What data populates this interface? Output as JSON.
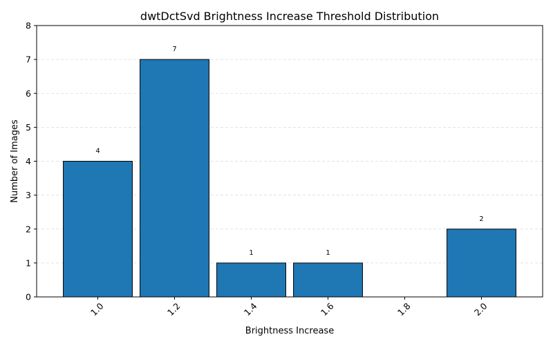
{
  "chart_data": {
    "type": "bar",
    "title": "dwtDctSvd Brightness Increase Threshold Distribution",
    "xlabel": "Brightness Increase",
    "ylabel": "Number of Images",
    "categories": [
      "1.0",
      "1.2",
      "1.4",
      "1.6",
      "1.8",
      "2.0"
    ],
    "values": [
      4,
      7,
      1,
      1,
      0,
      2
    ],
    "bar_labels": [
      "4",
      "7",
      "1",
      "1",
      "",
      "2"
    ],
    "ylim": [
      0,
      8
    ],
    "yticks": [
      "0",
      "1",
      "2",
      "3",
      "4",
      "5",
      "6",
      "7",
      "8"
    ],
    "grid": "y-dashed",
    "xtick_rotation_deg": 45,
    "bar_color": "#1f77b4",
    "edge_color": "#000000"
  }
}
